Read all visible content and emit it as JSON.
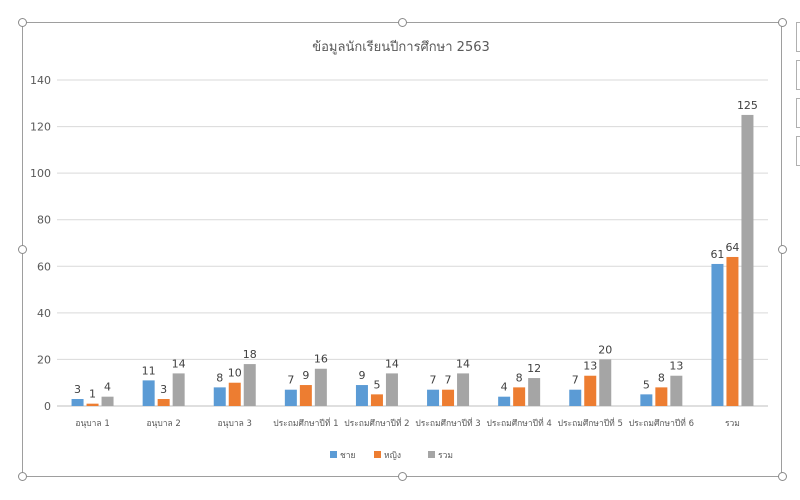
{
  "colors": {
    "male": "#5b9bd5",
    "female": "#ed7d31",
    "total": "#a5a5a5",
    "grid": "#d9d9d9",
    "text": "#595959"
  },
  "chart_data": {
    "type": "bar",
    "title": "ข้อมูลนักเรียนปีการศึกษา 2563",
    "xlabel": "",
    "ylabel": "",
    "ylim": [
      0,
      140
    ],
    "yticks": [
      "0",
      "20",
      "40",
      "60",
      "80",
      "100",
      "120",
      "140"
    ],
    "grid": true,
    "legend_position": "bottom",
    "categories": [
      "อนุบาล 1",
      "อนุบาล 2",
      "อนุบาล 3",
      "ประถมศึกษาปีที่ 1",
      "ประถมศึกษาปีที่ 2",
      "ประถมศึกษาปีที่ 3",
      "ประถมศึกษาปีที่ 4",
      "ประถมศึกษาปีที่ 5",
      "ประถมศึกษาปีที่ 6",
      "รวม"
    ],
    "series": [
      {
        "name": "ชาย",
        "color": "#5b9bd5",
        "values": [
          3,
          11,
          8,
          7,
          9,
          7,
          4,
          7,
          5,
          61
        ]
      },
      {
        "name": "หญิง",
        "color": "#ed7d31",
        "values": [
          1,
          3,
          10,
          9,
          5,
          7,
          8,
          13,
          8,
          64
        ]
      },
      {
        "name": "รวม",
        "color": "#a5a5a5",
        "values": [
          4,
          14,
          18,
          16,
          14,
          14,
          12,
          20,
          13,
          125
        ]
      }
    ]
  }
}
